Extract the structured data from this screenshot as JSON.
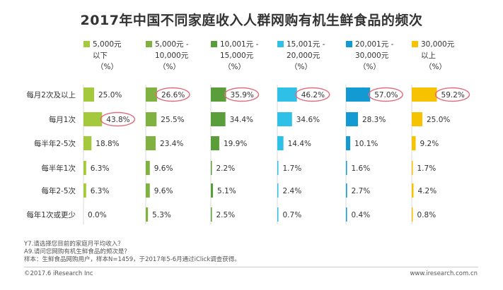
{
  "chart_data": {
    "type": "bar",
    "orientation": "horizontal-small-multiples",
    "title": "2017年中国不同家庭收入人群网购有机生鲜食品的频次",
    "categories": [
      "每月2次及以上",
      "每月1次",
      "每半年2-5次",
      "每半年1次",
      "每年2-5次",
      "每年1次或更少"
    ],
    "series": [
      {
        "name": "5,000元以下",
        "label_lines": [
          "5,000元",
          "以下"
        ],
        "unit": "（%）",
        "color": "#a4c93c",
        "values": [
          25.0,
          43.8,
          18.8,
          6.3,
          6.3,
          0.0
        ],
        "highlighted": [
          false,
          true,
          false,
          false,
          false,
          false
        ]
      },
      {
        "name": "5,000元 - 10,000元",
        "label_lines": [
          "5,000元 -",
          "10,000元"
        ],
        "unit": "（%）",
        "color": "#7fb241",
        "values": [
          26.6,
          25.5,
          23.4,
          9.6,
          9.6,
          5.3
        ],
        "highlighted": [
          true,
          false,
          false,
          false,
          false,
          false
        ]
      },
      {
        "name": "10,001元 - 15,000元",
        "label_lines": [
          "10,001元 -",
          "15,000元"
        ],
        "unit": "（%）",
        "color": "#5a9e3c",
        "values": [
          35.9,
          34.4,
          19.9,
          2.2,
          5.1,
          2.5
        ],
        "highlighted": [
          true,
          false,
          false,
          false,
          false,
          false
        ]
      },
      {
        "name": "15,001元 - 20,000元",
        "label_lines": [
          "15,001元 -",
          "20,000元"
        ],
        "unit": "（%）",
        "color": "#2ec0e6",
        "values": [
          46.2,
          34.6,
          14.4,
          1.7,
          2.4,
          0.7
        ],
        "highlighted": [
          true,
          false,
          false,
          false,
          false,
          false
        ]
      },
      {
        "name": "20,001元 - 30,000元",
        "label_lines": [
          "20,001元 -",
          "30,000元"
        ],
        "unit": "（%）",
        "color": "#139ad3",
        "values": [
          57.0,
          28.3,
          10.1,
          1.6,
          2.7,
          0.4
        ],
        "highlighted": [
          true,
          false,
          false,
          false,
          false,
          false
        ]
      },
      {
        "name": "30,000元以上",
        "label_lines": [
          "30,000元",
          "以上"
        ],
        "unit": "（%）",
        "color": "#f7c200",
        "values": [
          59.2,
          25.0,
          9.2,
          1.7,
          4.2,
          0.8
        ],
        "highlighted": [
          true,
          false,
          false,
          false,
          false,
          false
        ]
      }
    ],
    "highlight_color": "#e06c7d",
    "xlim": [
      0,
      100
    ],
    "grid": false,
    "legend": "top"
  },
  "notes": [
    "Y7.请选择您目前的家庭月平均收入？",
    "A9.请问您网购有机生鲜食品的频次是？",
    "样本：生鲜食品网购用户，样本N=1459，于2017年5-6月通过iClick调查获得。"
  ],
  "footer": {
    "copyright": "©2017.6 iResearch Inc",
    "website": "www.iresearch.com.cn"
  }
}
